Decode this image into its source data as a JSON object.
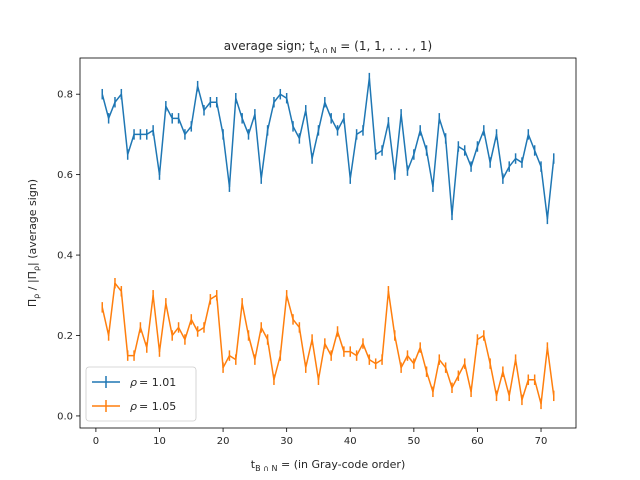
{
  "chart_data": {
    "type": "line",
    "title": "average sign;  t_{A∩N} = (1, 1, . . . , 1)",
    "title_parts": {
      "prefix": "average sign;  t",
      "sub": "A ∩ N",
      "suffix": " = (1, 1, . . . , 1)"
    },
    "xlabel": "t_{B∩N} =  (in Gray-code order)",
    "xlabel_parts": {
      "prefix": "t",
      "sub": "B ∩ N",
      "suffix": " =  (in Gray-code order)"
    },
    "ylabel": "Π_ρ / |Π_ρ| (average sign)",
    "ylabel_parts": {
      "a": "Π",
      "a_sub": "ρ",
      "mid": " / |Π",
      "b_sub": "ρ",
      "end": "| (average sign)"
    },
    "xlim": [
      -2.5,
      75.5
    ],
    "ylim": [
      -0.03,
      0.89
    ],
    "xticks": [
      0,
      10,
      20,
      30,
      40,
      50,
      60,
      70
    ],
    "yticks": [
      0.0,
      0.2,
      0.4,
      0.6,
      0.8
    ],
    "ytick_labels": [
      "0.0",
      "0.2",
      "0.4",
      "0.6",
      "0.8"
    ],
    "legend_position": "lower-left",
    "series": [
      {
        "name": "ρ = 1.01",
        "legend_symbol": "ρ",
        "legend_value": "= 1.01",
        "color": "#1f77b4",
        "x": [
          1,
          2,
          3,
          4,
          5,
          6,
          7,
          8,
          9,
          10,
          11,
          12,
          13,
          14,
          15,
          16,
          17,
          18,
          19,
          20,
          21,
          22,
          23,
          24,
          25,
          26,
          27,
          28,
          29,
          30,
          31,
          32,
          33,
          34,
          35,
          36,
          37,
          38,
          39,
          40,
          41,
          42,
          43,
          44,
          45,
          46,
          47,
          48,
          49,
          50,
          51,
          52,
          53,
          54,
          55,
          56,
          57,
          58,
          59,
          60,
          61,
          62,
          63,
          64,
          65,
          66,
          67,
          68,
          69,
          70,
          71,
          72
        ],
        "y": [
          0.8,
          0.74,
          0.78,
          0.8,
          0.65,
          0.7,
          0.7,
          0.7,
          0.71,
          0.6,
          0.77,
          0.74,
          0.74,
          0.7,
          0.72,
          0.82,
          0.76,
          0.78,
          0.78,
          0.7,
          0.57,
          0.79,
          0.74,
          0.7,
          0.75,
          0.59,
          0.71,
          0.78,
          0.8,
          0.79,
          0.72,
          0.69,
          0.76,
          0.64,
          0.71,
          0.78,
          0.74,
          0.71,
          0.74,
          0.59,
          0.7,
          0.71,
          0.84,
          0.65,
          0.66,
          0.73,
          0.6,
          0.75,
          0.61,
          0.65,
          0.71,
          0.66,
          0.57,
          0.74,
          0.69,
          0.5,
          0.67,
          0.66,
          0.62,
          0.67,
          0.71,
          0.63,
          0.7,
          0.59,
          0.62,
          0.64,
          0.63,
          0.7,
          0.66,
          0.62,
          0.49,
          0.64
        ],
        "err": 0.013
      },
      {
        "name": "ρ = 1.05",
        "legend_symbol": "ρ",
        "legend_value": "= 1.05",
        "color": "#ff7f0e",
        "x": [
          1,
          2,
          3,
          4,
          5,
          6,
          7,
          8,
          9,
          10,
          11,
          12,
          13,
          14,
          15,
          16,
          17,
          18,
          19,
          20,
          21,
          22,
          23,
          24,
          25,
          26,
          27,
          28,
          29,
          30,
          31,
          32,
          33,
          34,
          35,
          36,
          37,
          38,
          39,
          40,
          41,
          42,
          43,
          44,
          45,
          46,
          47,
          48,
          49,
          50,
          51,
          52,
          53,
          54,
          55,
          56,
          57,
          58,
          59,
          60,
          61,
          62,
          63,
          64,
          65,
          66,
          67,
          68,
          69,
          70,
          71,
          72
        ],
        "y": [
          0.27,
          0.2,
          0.33,
          0.31,
          0.15,
          0.15,
          0.22,
          0.17,
          0.3,
          0.16,
          0.28,
          0.2,
          0.22,
          0.19,
          0.24,
          0.21,
          0.22,
          0.29,
          0.3,
          0.12,
          0.15,
          0.14,
          0.28,
          0.2,
          0.14,
          0.22,
          0.19,
          0.09,
          0.15,
          0.3,
          0.24,
          0.22,
          0.12,
          0.19,
          0.09,
          0.18,
          0.15,
          0.21,
          0.16,
          0.16,
          0.15,
          0.18,
          0.14,
          0.13,
          0.14,
          0.31,
          0.2,
          0.12,
          0.15,
          0.13,
          0.17,
          0.11,
          0.06,
          0.14,
          0.12,
          0.07,
          0.1,
          0.13,
          0.06,
          0.19,
          0.2,
          0.13,
          0.05,
          0.11,
          0.05,
          0.14,
          0.04,
          0.09,
          0.09,
          0.03,
          0.17,
          0.05
        ],
        "err": 0.013
      }
    ]
  }
}
